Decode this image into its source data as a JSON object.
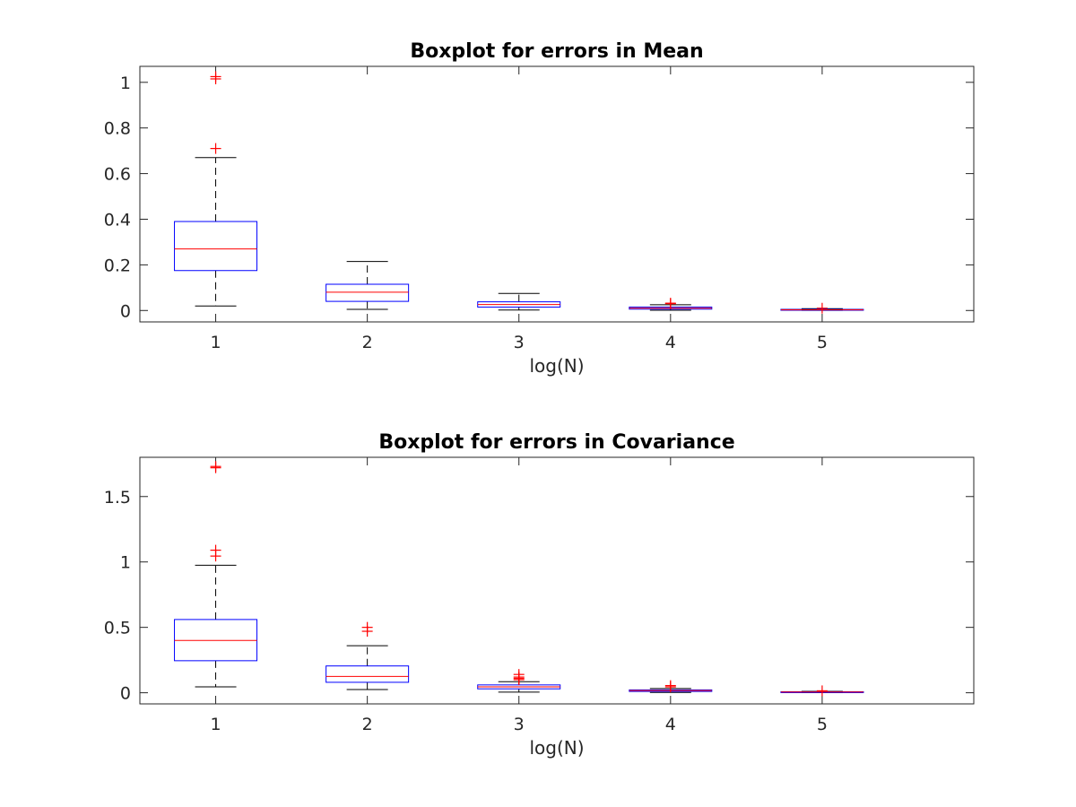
{
  "chart_data": [
    {
      "type": "box",
      "title": "Boxplot for errors in Mean",
      "xlabel": "log(N)",
      "ylabel": "",
      "ylim": [
        -0.05,
        1.07
      ],
      "yticks": [
        0,
        0.2,
        0.4,
        0.6,
        0.8,
        1
      ],
      "ytick_labels": [
        "0",
        "0.2",
        "0.4",
        "0.6",
        "0.8",
        "1"
      ],
      "categories": [
        "1",
        "2",
        "3",
        "4",
        "5"
      ],
      "boxes": [
        {
          "category": "1",
          "whisker_low": 0.02,
          "q1": 0.175,
          "median": 0.27,
          "q3": 0.39,
          "whisker_high": 0.67,
          "outliers": [
            0.71,
            1.015,
            1.025
          ]
        },
        {
          "category": "2",
          "whisker_low": 0.005,
          "q1": 0.04,
          "median": 0.08,
          "q3": 0.115,
          "whisker_high": 0.215,
          "outliers": []
        },
        {
          "category": "3",
          "whisker_low": 0.002,
          "q1": 0.015,
          "median": 0.026,
          "q3": 0.038,
          "whisker_high": 0.075,
          "outliers": []
        },
        {
          "category": "4",
          "whisker_low": 0.001,
          "q1": 0.006,
          "median": 0.01,
          "q3": 0.015,
          "whisker_high": 0.025,
          "outliers": [
            0.03,
            0.032
          ]
        },
        {
          "category": "5",
          "whisker_low": 0.0005,
          "q1": 0.002,
          "median": 0.003,
          "q3": 0.005,
          "whisker_high": 0.008,
          "outliers": [
            0.01
          ]
        }
      ],
      "grid": false,
      "colors": {
        "box": "#0000ff",
        "median": "#ff0000",
        "whisker": "#000000",
        "outlier": "#ff0000"
      }
    },
    {
      "type": "box",
      "title": "Boxplot for errors in Covariance",
      "xlabel": "log(N)",
      "ylabel": "",
      "ylim": [
        -0.085,
        1.8
      ],
      "yticks": [
        0,
        0.5,
        1,
        1.5
      ],
      "ytick_labels": [
        "0",
        "0.5",
        "1",
        "1.5"
      ],
      "categories": [
        "1",
        "2",
        "3",
        "4",
        "5"
      ],
      "boxes": [
        {
          "category": "1",
          "whisker_low": 0.045,
          "q1": 0.245,
          "median": 0.4,
          "q3": 0.56,
          "whisker_high": 0.975,
          "outliers": [
            1.045,
            1.09,
            1.72,
            1.73
          ]
        },
        {
          "category": "2",
          "whisker_low": 0.025,
          "q1": 0.08,
          "median": 0.125,
          "q3": 0.205,
          "whisker_high": 0.36,
          "outliers": [
            0.47,
            0.5
          ]
        },
        {
          "category": "3",
          "whisker_low": 0.005,
          "q1": 0.03,
          "median": 0.045,
          "q3": 0.06,
          "whisker_high": 0.085,
          "outliers": [
            0.1,
            0.11,
            0.12,
            0.14
          ]
        },
        {
          "category": "4",
          "whisker_low": 0.002,
          "q1": 0.01,
          "median": 0.017,
          "q3": 0.022,
          "whisker_high": 0.032,
          "outliers": [
            0.045,
            0.055
          ]
        },
        {
          "category": "5",
          "whisker_low": 0.001,
          "q1": 0.004,
          "median": 0.006,
          "q3": 0.008,
          "whisker_high": 0.011,
          "outliers": [
            0.015
          ]
        }
      ],
      "grid": false,
      "colors": {
        "box": "#0000ff",
        "median": "#ff0000",
        "whisker": "#000000",
        "outlier": "#ff0000"
      }
    }
  ]
}
